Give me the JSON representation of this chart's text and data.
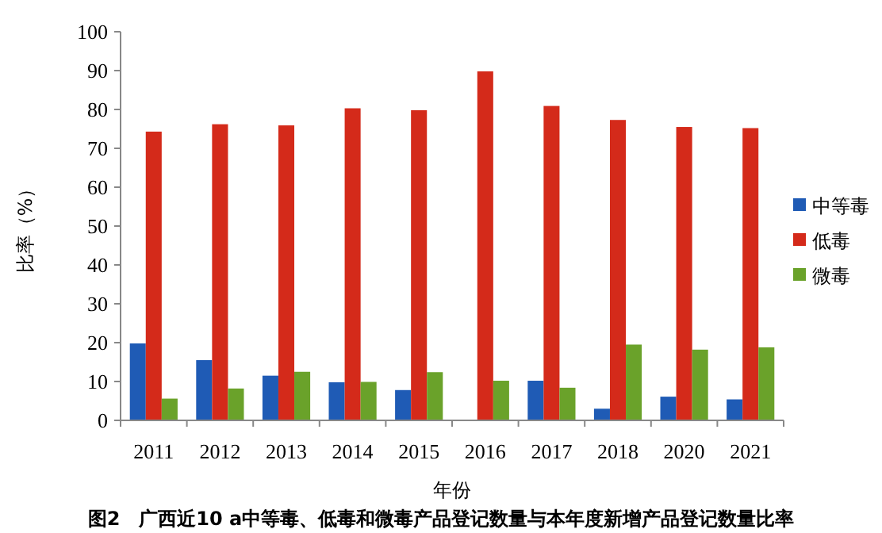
{
  "chart_data": {
    "type": "bar",
    "title": "图2　广西近10 a中等毒、低毒和微毒产品登记数量与本年度新增产品登记数量比率",
    "xlabel": "年份",
    "ylabel": "比率（%）",
    "categories": [
      "2011",
      "2012",
      "2013",
      "2014",
      "2015",
      "2016",
      "2017",
      "2018",
      "2020",
      "2021"
    ],
    "series": [
      {
        "name": "中等毒",
        "color": "#1f5bb5",
        "values": [
          19.8,
          15.5,
          11.5,
          9.8,
          7.8,
          0,
          10.2,
          3.0,
          6.1,
          5.4
        ]
      },
      {
        "name": "低毒",
        "color": "#d42a1a",
        "values": [
          74.3,
          76.2,
          75.9,
          80.3,
          79.8,
          89.8,
          80.9,
          77.3,
          75.5,
          75.2
        ]
      },
      {
        "name": "微毒",
        "color": "#6aa22a",
        "values": [
          5.6,
          8.2,
          12.5,
          9.9,
          12.4,
          10.2,
          8.4,
          19.5,
          18.2,
          18.8
        ]
      }
    ],
    "ylim": [
      0,
      100
    ],
    "yticks": [
      0,
      10,
      20,
      30,
      40,
      50,
      60,
      70,
      80,
      90,
      100
    ],
    "grid": false,
    "legend": "right"
  }
}
